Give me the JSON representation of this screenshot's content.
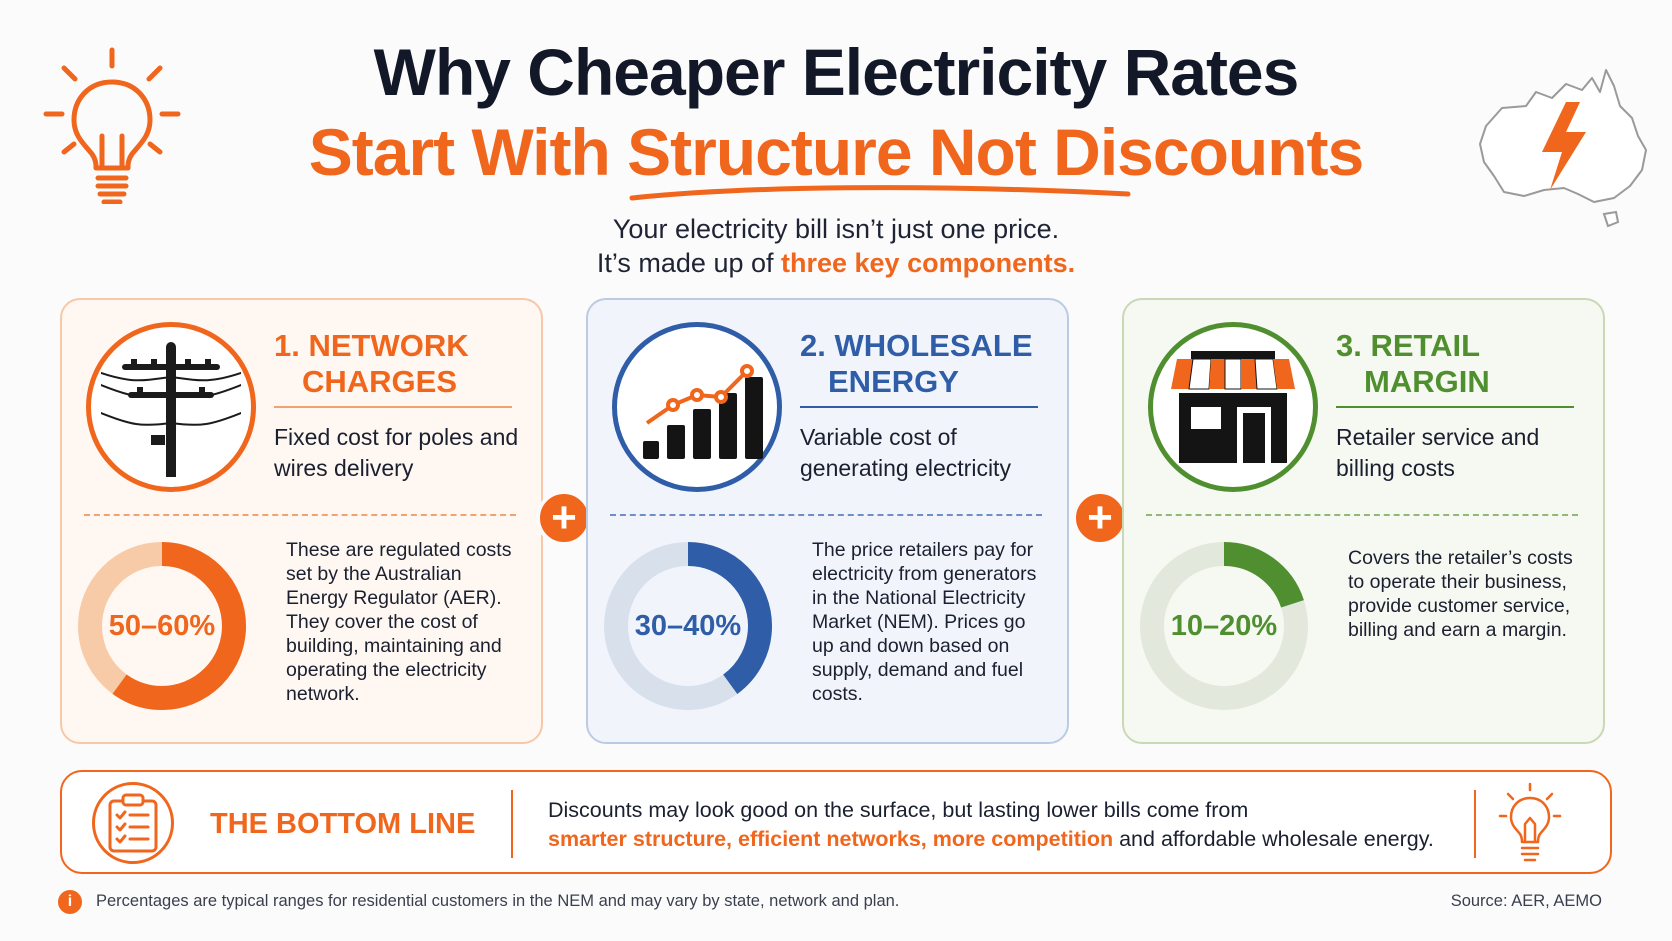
{
  "header": {
    "title_line1": "Why Cheaper Electricity Rates",
    "title_line2": "Start With Structure Not Discounts",
    "subtitle_line1": "Your electricity bill isn’t just one price.",
    "subtitle_line2_prefix": "It’s made up of ",
    "subtitle_line2_highlight": "three key components."
  },
  "cards": [
    {
      "title_line1": "1. NETWORK",
      "title_line2": "CHARGES",
      "description": "Fixed cost for poles and wires delivery",
      "percent_label": "50–60%",
      "share_range": [
        50,
        60
      ],
      "detail": "These are regulated costs set by the Australian Energy Regulator (AER). They cover the cost of building, maintaining and operating the electricity network.",
      "accent": "#f0661c",
      "icon": "power-pole-icon"
    },
    {
      "title_line1": "2. WHOLESALE",
      "title_line2": "ENERGY",
      "description": "Variable cost of generating electricity",
      "percent_label": "30–40%",
      "share_range": [
        30,
        40
      ],
      "detail": "The price retailers pay for electricity from generators in the National Electricity Market (NEM). Prices go up and down based on supply, demand and fuel costs.",
      "accent": "#2f5da7",
      "icon": "rising-bar-chart-icon"
    },
    {
      "title_line1": "3. RETAIL",
      "title_line2": "MARGIN",
      "description": "Retailer service and billing costs",
      "percent_label": "10–20%",
      "share_range": [
        10,
        20
      ],
      "detail": "Covers the retailer’s costs to operate their business, provide customer service, billing and earn a margin.",
      "accent": "#4f8f2f",
      "icon": "storefront-icon"
    }
  ],
  "plus_symbol": "+",
  "bottom_line": {
    "title": "THE BOTTOM LINE",
    "text_plain": "Discounts may look good on the surface, but lasting lower bills come from",
    "text_highlight": "smarter structure, efficient networks, more competition",
    "text_end": " and affordable wholesale energy."
  },
  "footer": {
    "info_symbol": "i",
    "note": "Percentages are typical ranges for residential customers in the NEM and may vary by state, network and plan.",
    "source": "Source: AER, AEMO"
  },
  "colors": {
    "orange": "#f0661c",
    "blue": "#2f5da7",
    "green": "#4f8f2f",
    "navy": "#121827"
  }
}
